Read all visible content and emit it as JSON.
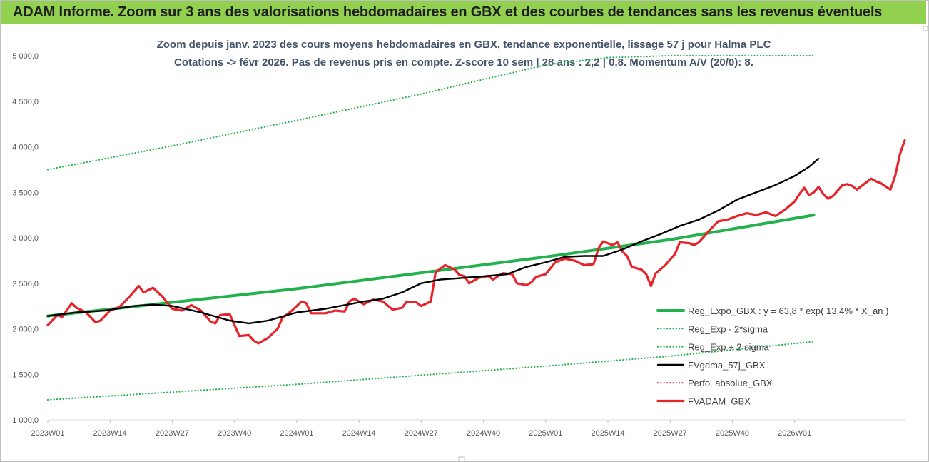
{
  "banner": {
    "title": "ADAM Informe. Zoom sur 3 ans des valorisations hebdomadaires en GBX et des courbes de tendances sans les revenus éventuels",
    "color": "#92d050"
  },
  "chart_data": {
    "type": "line",
    "title_line1": "Zoom depuis janv. 2023 des cours moyens hebdomadaires en GBX, tendance exponentielle, lissage 57 j pour Halma PLC",
    "title_line2": "Cotations -> févr 2026.  Pas de revenus pris en compte. Z-score 10 sem | 28 ans : 2,2 | 0,8. Momentum A/V (20/0): 8.",
    "ylim": [
      1000,
      5000
    ],
    "y_ticks": [
      "5 000,0",
      "4 500,0",
      "4 000,0",
      "3 500,0",
      "3 000,0",
      "2 500,0",
      "2 000,0",
      "1 500,0",
      "1 000,0"
    ],
    "y_tick_values": [
      5000,
      4500,
      4000,
      3500,
      3000,
      2500,
      2000,
      1500,
      1000
    ],
    "x_ticks": [
      "2023W01",
      "2023W14",
      "2023W27",
      "2023W40",
      "2024W01",
      "2024W14",
      "2024W27",
      "2024W40",
      "2025W01",
      "2025W14",
      "2025W27",
      "2025W40",
      "2026W01"
    ],
    "x_tick_weeks": [
      0,
      13,
      26,
      39,
      52,
      65,
      78,
      91,
      104,
      117,
      130,
      143,
      156
    ],
    "x_max_week": 160,
    "legend_position": "bottom-right",
    "grid": false,
    "series": [
      {
        "name": "Reg_Expo_GBX : y = 63,8 * exp( 13,4% *  X_an )",
        "color": "#22b14c",
        "style": "solid",
        "points": [
          [
            0,
            2140
          ],
          [
            52,
            2440
          ],
          [
            104,
            2790
          ],
          [
            130,
            2980
          ],
          [
            160,
            3250
          ]
        ]
      },
      {
        "name": "Reg_Exp - 2*sigma",
        "color": "#22b14c",
        "style": "dotted",
        "points": [
          [
            0,
            1220
          ],
          [
            52,
            1390
          ],
          [
            104,
            1590
          ],
          [
            130,
            1700
          ],
          [
            160,
            1860
          ]
        ]
      },
      {
        "name": "Reg_Exp + 2 sigma",
        "color": "#22b14c",
        "style": "dotted",
        "points": [
          [
            0,
            3750
          ],
          [
            26,
            4010
          ],
          [
            52,
            4290
          ],
          [
            78,
            4580
          ],
          [
            91,
            4740
          ],
          [
            96,
            4800
          ],
          [
            104,
            4900
          ],
          [
            117,
            4980
          ],
          [
            130,
            5000
          ],
          [
            160,
            5000
          ]
        ]
      },
      {
        "name": "FVgdma_57j_GBX",
        "color": "#000000",
        "style": "solid",
        "points": [
          [
            0,
            2140
          ],
          [
            6,
            2180
          ],
          [
            12,
            2200
          ],
          [
            18,
            2250
          ],
          [
            22,
            2265
          ],
          [
            26,
            2250
          ],
          [
            32,
            2180
          ],
          [
            38,
            2090
          ],
          [
            42,
            2060
          ],
          [
            46,
            2090
          ],
          [
            52,
            2180
          ],
          [
            58,
            2220
          ],
          [
            63,
            2270
          ],
          [
            66,
            2300
          ],
          [
            70,
            2330
          ],
          [
            74,
            2400
          ],
          [
            78,
            2500
          ],
          [
            82,
            2540
          ],
          [
            87,
            2560
          ],
          [
            92,
            2580
          ],
          [
            96,
            2600
          ],
          [
            100,
            2680
          ],
          [
            104,
            2730
          ],
          [
            108,
            2790
          ],
          [
            112,
            2800
          ],
          [
            116,
            2800
          ],
          [
            120,
            2870
          ],
          [
            124,
            2960
          ],
          [
            128,
            3040
          ],
          [
            132,
            3130
          ],
          [
            136,
            3200
          ],
          [
            140,
            3300
          ],
          [
            144,
            3420
          ],
          [
            148,
            3500
          ],
          [
            152,
            3580
          ],
          [
            156,
            3680
          ],
          [
            159,
            3780
          ],
          [
            161,
            3870
          ]
        ]
      },
      {
        "name": "Perfo. absolue_GBX",
        "color": "#e8242b",
        "style": "dotted",
        "points": []
      },
      {
        "name": "FVADAM_GBX",
        "color": "#e8242b",
        "style": "solid",
        "points": [
          [
            0,
            2040
          ],
          [
            2,
            2150
          ],
          [
            3,
            2130
          ],
          [
            5,
            2280
          ],
          [
            6,
            2230
          ],
          [
            8,
            2180
          ],
          [
            10,
            2070
          ],
          [
            11,
            2090
          ],
          [
            13,
            2200
          ],
          [
            15,
            2240
          ],
          [
            17,
            2350
          ],
          [
            19,
            2470
          ],
          [
            20,
            2400
          ],
          [
            22,
            2450
          ],
          [
            24,
            2350
          ],
          [
            26,
            2220
          ],
          [
            28,
            2200
          ],
          [
            30,
            2260
          ],
          [
            32,
            2200
          ],
          [
            34,
            2080
          ],
          [
            35,
            2060
          ],
          [
            36,
            2150
          ],
          [
            38,
            2160
          ],
          [
            40,
            1920
          ],
          [
            42,
            1930
          ],
          [
            43,
            1870
          ],
          [
            44,
            1840
          ],
          [
            46,
            1900
          ],
          [
            48,
            2000
          ],
          [
            49,
            2120
          ],
          [
            51,
            2200
          ],
          [
            53,
            2300
          ],
          [
            54,
            2280
          ],
          [
            55,
            2170
          ],
          [
            58,
            2170
          ],
          [
            60,
            2200
          ],
          [
            62,
            2190
          ],
          [
            63,
            2300
          ],
          [
            64,
            2330
          ],
          [
            66,
            2270
          ],
          [
            68,
            2320
          ],
          [
            70,
            2300
          ],
          [
            72,
            2210
          ],
          [
            74,
            2230
          ],
          [
            75,
            2300
          ],
          [
            77,
            2290
          ],
          [
            78,
            2250
          ],
          [
            80,
            2300
          ],
          [
            81,
            2620
          ],
          [
            83,
            2700
          ],
          [
            85,
            2650
          ],
          [
            86,
            2590
          ],
          [
            87,
            2580
          ],
          [
            88,
            2500
          ],
          [
            90,
            2560
          ],
          [
            92,
            2580
          ],
          [
            93,
            2540
          ],
          [
            95,
            2610
          ],
          [
            97,
            2600
          ],
          [
            98,
            2500
          ],
          [
            100,
            2480
          ],
          [
            101,
            2510
          ],
          [
            102,
            2570
          ],
          [
            104,
            2600
          ],
          [
            106,
            2730
          ],
          [
            108,
            2770
          ],
          [
            110,
            2750
          ],
          [
            112,
            2700
          ],
          [
            114,
            2710
          ],
          [
            115,
            2880
          ],
          [
            116,
            2960
          ],
          [
            118,
            2920
          ],
          [
            119,
            2950
          ],
          [
            120,
            2850
          ],
          [
            121,
            2800
          ],
          [
            122,
            2680
          ],
          [
            124,
            2650
          ],
          [
            125,
            2600
          ],
          [
            126,
            2470
          ],
          [
            127,
            2610
          ],
          [
            129,
            2700
          ],
          [
            131,
            2820
          ],
          [
            132,
            2950
          ],
          [
            134,
            2940
          ],
          [
            135,
            2920
          ],
          [
            136,
            2950
          ],
          [
            138,
            3070
          ],
          [
            140,
            3180
          ],
          [
            142,
            3200
          ],
          [
            144,
            3240
          ],
          [
            146,
            3270
          ],
          [
            148,
            3250
          ],
          [
            150,
            3280
          ],
          [
            152,
            3240
          ],
          [
            154,
            3310
          ],
          [
            156,
            3400
          ],
          [
            157,
            3480
          ],
          [
            158,
            3550
          ],
          [
            159,
            3470
          ],
          [
            160,
            3500
          ],
          [
            161,
            3560
          ],
          [
            162,
            3480
          ],
          [
            163,
            3430
          ],
          [
            164,
            3460
          ],
          [
            166,
            3580
          ],
          [
            167,
            3590
          ],
          [
            168,
            3570
          ],
          [
            169,
            3530
          ],
          [
            170,
            3570
          ],
          [
            172,
            3650
          ],
          [
            173,
            3620
          ],
          [
            174,
            3600
          ],
          [
            176,
            3530
          ],
          [
            177,
            3680
          ],
          [
            178,
            3920
          ],
          [
            179,
            4070
          ]
        ]
      }
    ]
  }
}
